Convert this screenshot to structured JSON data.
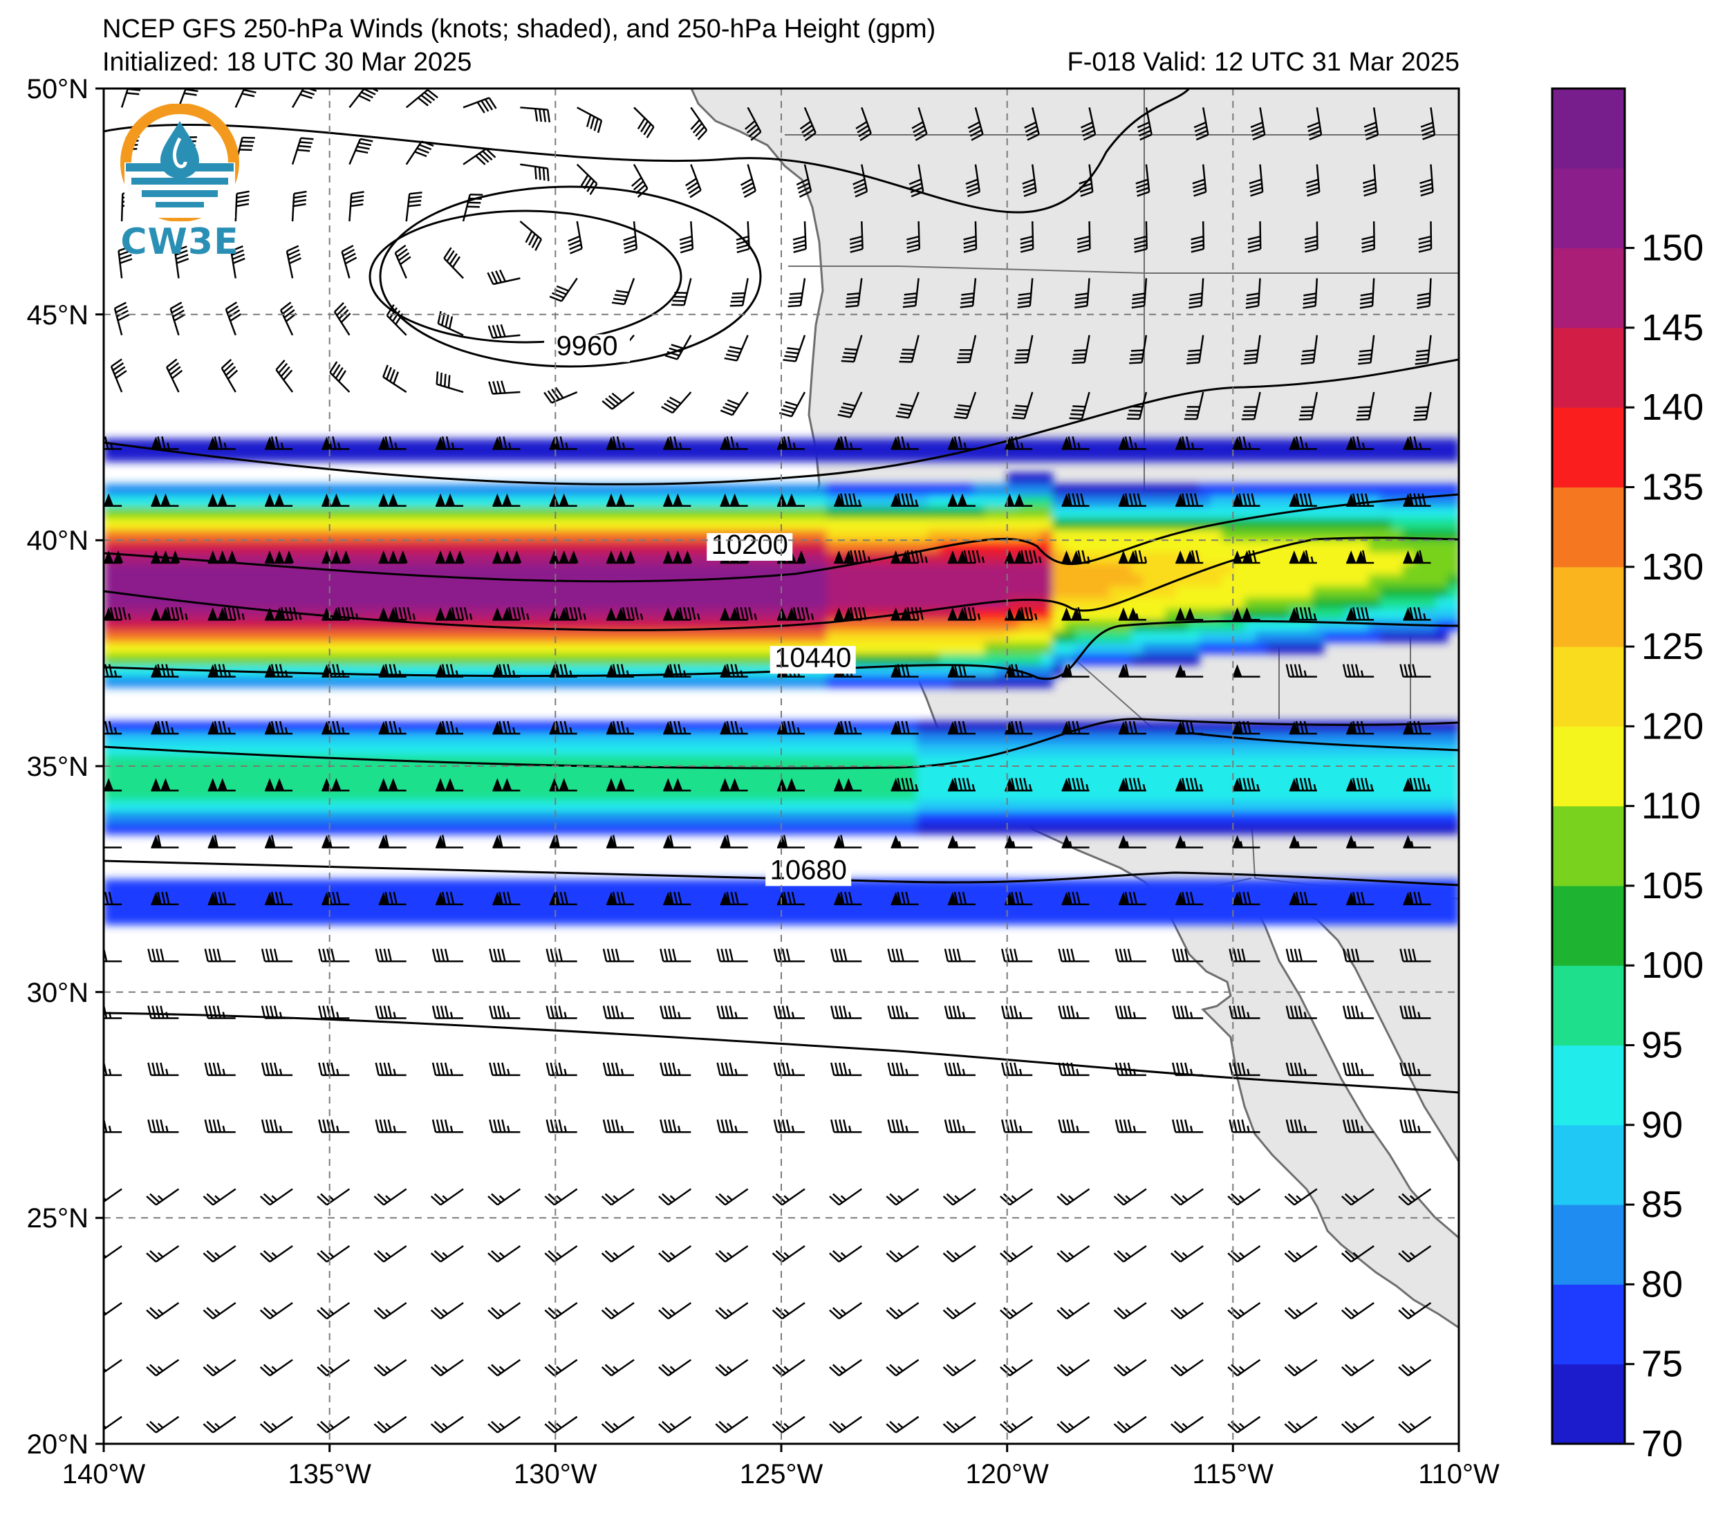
{
  "title": {
    "line1": "NCEP GFS 250-hPa Winds (knots; shaded), and 250-hPa Height (gpm)",
    "line2": "Initialized: 18 UTC 30 Mar 2025",
    "valid": "F-018  Valid: 12 UTC 31 Mar 2025"
  },
  "logo": {
    "text": "CW3E",
    "icon": "water-drop-logo-icon"
  },
  "map": {
    "lon_range": [
      -140,
      -110
    ],
    "lat_range": [
      20,
      50
    ],
    "lat_ticks": [
      "20°N",
      "25°N",
      "30°N",
      "35°N",
      "40°N",
      "45°N",
      "50°N"
    ],
    "lon_ticks": [
      "140°W",
      "135°W",
      "130°W",
      "125°W",
      "120°W",
      "115°W",
      "110°W"
    ],
    "land_color": "#e6e6e6",
    "ocean_color": "#ffffff",
    "contours": [
      {
        "label": "9960",
        "value": 9960,
        "label_lon": -129.3,
        "label_lat": 44.1
      },
      {
        "label": "10200",
        "value": 10200,
        "label_lon": -125.7,
        "label_lat": 39.7
      },
      {
        "label": "10440",
        "value": 10440,
        "label_lon": -124.3,
        "label_lat": 37.2
      },
      {
        "label": "10680",
        "value": 10680,
        "label_lon": -124.4,
        "label_lat": 32.5
      }
    ]
  },
  "colorbar": {
    "levels": [
      70,
      75,
      80,
      85,
      90,
      95,
      100,
      105,
      110,
      120,
      125,
      130,
      135,
      140,
      145,
      150
    ],
    "labels": [
      "70",
      "75",
      "80",
      "85",
      "90",
      "95",
      "100",
      "105",
      "110",
      "120",
      "125",
      "130",
      "135",
      "140",
      "145",
      "150"
    ],
    "colors": [
      "#1c1ccd",
      "#1e3cff",
      "#1e8cf0",
      "#20c8f5",
      "#22ebeb",
      "#1ee08c",
      "#1eb432",
      "#78d21e",
      "#f5f51e",
      "#fadc1e",
      "#fab41e",
      "#f57820",
      "#fa1e1e",
      "#d21e46",
      "#aa1e78",
      "#8c1e8c",
      "#781e8c"
    ]
  }
}
